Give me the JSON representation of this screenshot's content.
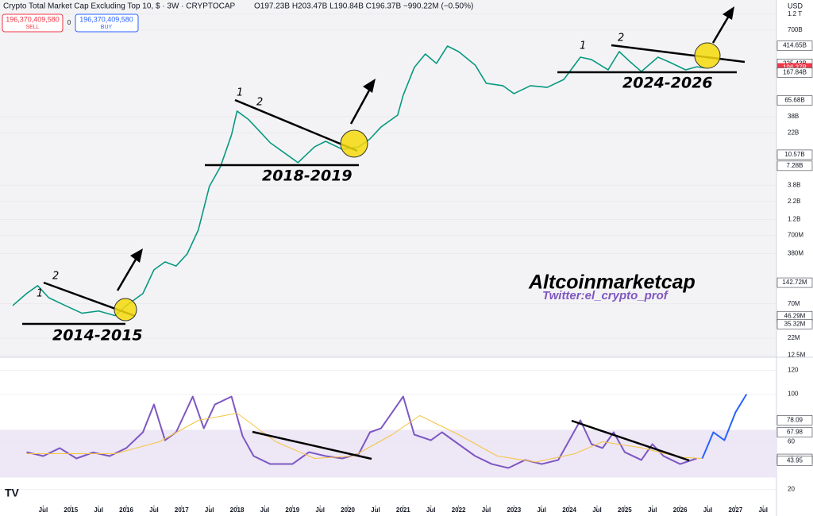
{
  "chart_data": [
    {
      "type": "line",
      "title": "Crypto Total Market Cap Excluding Top 10, $ · 3W · CRYPTOCAP",
      "subtitle": "O197.23B H203.47B L190.84B C196.37B −990.22M (−0.50%)",
      "sell_price": "196,370,409,580",
      "sell_label": "SELL",
      "spread": "0",
      "buy_price": "196,370,409,580",
      "buy_label": "BUY",
      "currency": "USD",
      "countdown": "20d 7h",
      "log_scale": true,
      "xlim": [
        2013.72,
        2027.74
      ],
      "ylim": [
        11600000,
        1930000000000
      ],
      "yticks": [
        {
          "value": 1200000000000,
          "label": "1.2 T"
        },
        {
          "value": 700000000000,
          "label": "700B"
        },
        {
          "value": 38000000000,
          "label": "38B"
        },
        {
          "value": 22000000000,
          "label": "22B"
        },
        {
          "value": 3800000000,
          "label": "3.8B"
        },
        {
          "value": 2200000000,
          "label": "2.2B"
        },
        {
          "value": 1200000000,
          "label": "1.2B"
        },
        {
          "value": 700000000,
          "label": "700M"
        },
        {
          "value": 380000000,
          "label": "380M"
        },
        {
          "value": 70000000,
          "label": "70M"
        },
        {
          "value": 22000000,
          "label": "22M"
        },
        {
          "value": 12500000,
          "label": "12.5M"
        }
      ],
      "price_labels": [
        {
          "value": 414650000000,
          "label": "414.65B",
          "color": "#131722"
        },
        {
          "value": 225430000000,
          "label": "225.43B",
          "color": "#131722"
        },
        {
          "value": 196370000000,
          "label": "196.37B",
          "color": "#f23645"
        },
        {
          "value": 167840000000,
          "label": "167.84B",
          "color": "#131722"
        },
        {
          "value": 65680000000,
          "label": "65.68B",
          "color": "#131722"
        },
        {
          "value": 10570000000,
          "label": "10.57B",
          "color": "#131722"
        },
        {
          "value": 7280000000,
          "label": "7.28B",
          "color": "#131722"
        },
        {
          "value": 142720000,
          "label": "142.72M",
          "color": "#131722"
        },
        {
          "value": 46290000,
          "label": "46.29M",
          "color": "#131722"
        },
        {
          "value": 35320000,
          "label": "35.32M",
          "color": "#131722"
        }
      ],
      "series": [
        {
          "name": "Total Market Cap Excluding Top 10",
          "color": "#089981",
          "x": [
            2013.95,
            2014.2,
            2014.4,
            2014.6,
            2014.9,
            2015.2,
            2015.5,
            2015.8,
            2016.0,
            2016.3,
            2016.5,
            2016.7,
            2016.9,
            2017.1,
            2017.3,
            2017.5,
            2017.7,
            2017.9,
            2018.0,
            2018.2,
            2018.4,
            2018.6,
            2018.9,
            2019.1,
            2019.4,
            2019.6,
            2019.9,
            2020.2,
            2020.4,
            2020.6,
            2020.9,
            2021.0,
            2021.2,
            2021.4,
            2021.6,
            2021.8,
            2022.0,
            2022.3,
            2022.5,
            2022.8,
            2023.0,
            2023.3,
            2023.6,
            2023.9,
            2024.2,
            2024.4,
            2024.7,
            2024.9,
            2025.1,
            2025.3,
            2025.6,
            2025.8,
            2026.1,
            2026.3,
            2026.45
          ],
          "values": [
            66000000,
            99000000,
            129000000,
            86000000,
            66000000,
            51000000,
            55000000,
            47000000,
            66000000,
            99000000,
            220000000,
            287000000,
            250000000,
            375000000,
            836000000,
            3630000000,
            7070000000,
            20600000000,
            45900000000,
            35000000000,
            23600000000,
            15800000000,
            10600000000,
            8100000000,
            13800000000,
            16600000000,
            12700000000,
            13800000000,
            18000000000,
            26900000000,
            40100000000,
            78300000000,
            199000000000,
            314000000000,
            228000000000,
            410000000000,
            340000000000,
            216000000000,
            117000000000,
            108000000000,
            82600000000,
            108000000000,
            102000000000,
            133000000000,
            282000000000,
            260000000000,
            184000000000,
            340000000000,
            240000000000,
            174000000000,
            282000000000,
            240000000000,
            184000000000,
            204000000000,
            196370000000
          ]
        }
      ],
      "annotations": [
        "1",
        "2",
        "2014-2015",
        "1",
        "2",
        "2018-2019",
        "1",
        "2",
        "2024-2026",
        "Altcoinmarketcap",
        "Twitter:el_crypto_prof"
      ]
    },
    {
      "type": "line",
      "xlim": [
        2013.72,
        2027.74
      ],
      "ylim": [
        7,
        131
      ],
      "yticks": [
        120,
        100,
        60,
        20
      ],
      "band": [
        30,
        70
      ],
      "band_color": "#ede7f6",
      "xticks": [
        {
          "value": 2014.5,
          "label": "Jul"
        },
        2015,
        {
          "value": 2015.5,
          "label": "Jul"
        },
        2016,
        {
          "value": 2016.5,
          "label": "Jul"
        },
        2017,
        {
          "value": 2017.5,
          "label": "Jul"
        },
        2018,
        {
          "value": 2018.5,
          "label": "Jul"
        },
        2019,
        {
          "value": 2019.5,
          "label": "Jul"
        },
        2020,
        {
          "value": 2020.5,
          "label": "Jul"
        },
        2021,
        {
          "value": 2021.5,
          "label": "Jul"
        },
        2022,
        {
          "value": 2022.5,
          "label": "Jul"
        },
        2023,
        {
          "value": 2023.5,
          "label": "Jul"
        },
        2024,
        {
          "value": 2024.5,
          "label": "Jul"
        },
        2025,
        {
          "value": 2025.5,
          "label": "Jul"
        },
        2026,
        {
          "value": 2026.5,
          "label": "Jul"
        },
        2027,
        {
          "value": 2027.5,
          "label": "Jul"
        }
      ],
      "price_labels": [
        {
          "value": 78.09,
          "label": "78.09",
          "color": "#131722"
        },
        {
          "value": 67.98,
          "label": "67.98",
          "color": "#131722"
        },
        {
          "value": 45.64,
          "label": "45.64",
          "color": "#131722"
        },
        {
          "value": 43.95,
          "label": "43.95",
          "color": "#131722"
        }
      ],
      "series": [
        {
          "name": "RSI",
          "color": "#7e57c2",
          "x": [
            2014.2,
            2014.5,
            2014.8,
            2015.1,
            2015.4,
            2015.7,
            2016.0,
            2016.3,
            2016.5,
            2016.7,
            2016.9,
            2017.2,
            2017.4,
            2017.6,
            2017.9,
            2018.1,
            2018.3,
            2018.6,
            2019.0,
            2019.3,
            2019.6,
            2019.9,
            2020.2,
            2020.4,
            2020.6,
            2020.9,
            2021.0,
            2021.2,
            2021.5,
            2021.7,
            2022.0,
            2022.3,
            2022.6,
            2022.9,
            2023.2,
            2023.5,
            2023.8,
            2024.0,
            2024.2,
            2024.4,
            2024.6,
            2024.8,
            2025.0,
            2025.3,
            2025.5,
            2025.7,
            2026.0,
            2026.3
          ],
          "values": [
            51.3,
            48,
            54.7,
            46,
            51,
            48,
            54.7,
            68,
            91.3,
            61.3,
            68,
            98,
            71.3,
            91.3,
            98,
            64.7,
            48,
            41.3,
            41.3,
            51.3,
            48,
            46,
            50,
            68,
            71.3,
            91.3,
            98,
            66,
            61.3,
            68,
            58,
            48,
            41.3,
            38,
            44.7,
            41.3,
            44.7,
            61.3,
            78,
            58,
            54.7,
            68,
            51.3,
            44.7,
            58,
            48,
            41.3,
            46
          ]
        },
        {
          "name": "RSI MA",
          "color": "#f5c542",
          "x": [
            2014.2,
            2015.0,
            2015.8,
            2016.6,
            2017.3,
            2018.0,
            2018.7,
            2019.4,
            2020.1,
            2020.8,
            2021.3,
            2022.0,
            2022.7,
            2023.4,
            2024.1,
            2024.6,
            2025.3,
            2026.0,
            2026.4
          ],
          "values": [
            50,
            50,
            50,
            60,
            78,
            84,
            60,
            46,
            48,
            66,
            82,
            66,
            48,
            43,
            50,
            60,
            55,
            47,
            46
          ]
        },
        {
          "name": "Projection",
          "color": "#2962ff",
          "x": [
            2026.4,
            2026.6,
            2026.8,
            2027.0,
            2027.2
          ],
          "values": [
            46,
            68,
            61.3,
            84.7,
            100
          ]
        }
      ]
    }
  ]
}
